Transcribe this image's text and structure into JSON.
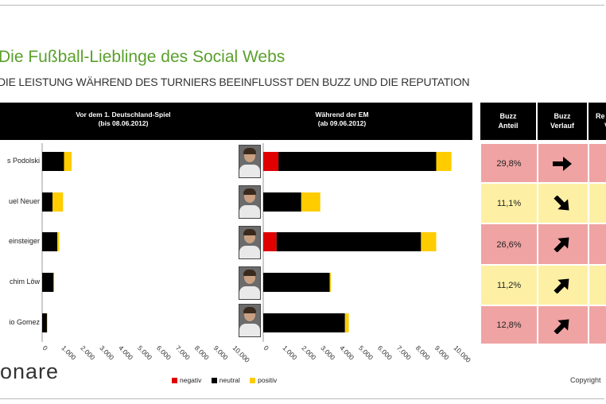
{
  "title": "Die Fußball-Lieblinge des Social Webs",
  "subtitle": "DIE LEISTUNG WÄHREND DES TURNIERS BEEINFLUSST DEN BUZZ UND DIE REPUTATION",
  "panel_left": {
    "line1": "Vor dem 1. Deutschland-Spiel",
    "line2": "(bis 08.06.2012)"
  },
  "panel_right": {
    "line1": "Während der EM",
    "line2": "(ab 09.06.2012)"
  },
  "players": [
    "s Podolski",
    "uel Neuer",
    "einsteiger",
    "chim Löw",
    "io Gomez"
  ],
  "colors": {
    "negativ": "#e00000",
    "neutral": "#000000",
    "positiv": "#ffcc00",
    "row_red": "#f0a3a3",
    "row_yellow": "#fdf0a4"
  },
  "chart_data": [
    {
      "type": "bar",
      "orientation": "horizontal",
      "stacked": true,
      "categories": [
        "s Podolski",
        "uel Neuer",
        "einsteiger",
        "chim Löw",
        "io Gomez"
      ],
      "series": [
        {
          "name": "negativ",
          "values": [
            0,
            0,
            0,
            0,
            0
          ]
        },
        {
          "name": "neutral",
          "values": [
            1.15,
            0.55,
            0.8,
            0.6,
            0.25
          ]
        },
        {
          "name": "positiv",
          "values": [
            0.4,
            0.55,
            0.1,
            0.03,
            0.03
          ]
        }
      ],
      "xlim": [
        0,
        10
      ],
      "x_ticks": [
        "0",
        "1.000",
        "2.000",
        "3.000",
        "4.000",
        "5.000",
        "6.000",
        "7.000",
        "8.000",
        "9.000",
        "10.000"
      ],
      "title": "Vor dem 1. Deutschland-Spiel (bis 08.06.2012)"
    },
    {
      "type": "bar",
      "orientation": "horizontal",
      "stacked": true,
      "categories": [
        "s Podolski",
        "uel Neuer",
        "einsteiger",
        "chim Löw",
        "io Gomez"
      ],
      "series": [
        {
          "name": "negativ",
          "values": [
            0.8,
            0,
            0.7,
            0,
            0
          ]
        },
        {
          "name": "neutral",
          "values": [
            8.3,
            2.0,
            7.6,
            3.5,
            4.3
          ]
        },
        {
          "name": "positiv",
          "values": [
            0.8,
            1.0,
            0.8,
            0.06,
            0.2
          ]
        }
      ],
      "xlim": [
        0,
        10
      ],
      "x_ticks": [
        "0",
        "1.000",
        "2.000",
        "3.000",
        "4.000",
        "5.000",
        "6.000",
        "7.000",
        "8.000",
        "9.000",
        "10.000"
      ],
      "title": "Während der EM (ab 09.06.2012)"
    }
  ],
  "legend": [
    {
      "label": "negativ",
      "color": "#e00000"
    },
    {
      "label": "neutral",
      "color": "#000000"
    },
    {
      "label": "positiv",
      "color": "#ffcc00"
    }
  ],
  "table": {
    "headers": [
      {
        "line1": "Buzz",
        "line2": "Anteil"
      },
      {
        "line1": "Buzz",
        "line2": "Verlauf"
      },
      {
        "line1": "Re",
        "line2": "V"
      }
    ],
    "buzz_share": [
      "29,8%",
      "11,1%",
      "26,6%",
      "11,2%",
      "12,8%"
    ],
    "row_colors": [
      "#f0a3a3",
      "#fdf0a4",
      "#f0a3a3",
      "#fdf0a4",
      "#f0a3a3"
    ],
    "buzz_trend": [
      "right-arrow-icon",
      "down-right-arrow-icon",
      "up-right-arrow-icon",
      "up-right-arrow-icon",
      "up-right-arrow-icon"
    ],
    "buzz_trend_angle": [
      0,
      45,
      -45,
      -45,
      -45
    ]
  },
  "logo_text": "onare",
  "copyright": "Copyright"
}
